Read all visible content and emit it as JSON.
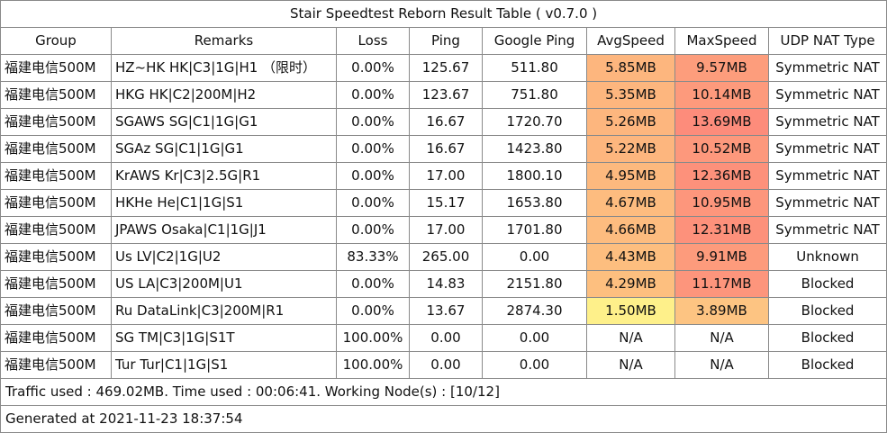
{
  "title": "Stair Speedtest Reborn Result Table ( v0.7.0 )",
  "headers": [
    "Group",
    "Remarks",
    "Loss",
    "Ping",
    "Google Ping",
    "AvgSpeed",
    "MaxSpeed",
    "UDP NAT Type"
  ],
  "rows": [
    {
      "group": "福建电信500M",
      "remarks": "HZ~HK HK|C3|1G|H1 （限时）",
      "loss": "0.00%",
      "ping": "125.67",
      "google_ping": "511.80",
      "avg_speed": "5.85MB",
      "max_speed": "9.57MB",
      "nat": "Symmetric NAT",
      "avg_color": "#fdb67e",
      "max_color": "#fd9d7c"
    },
    {
      "group": "福建电信500M",
      "remarks": "HKG  HK|C2|200M|H2",
      "loss": "0.00%",
      "ping": "123.67",
      "google_ping": "751.80",
      "avg_speed": "5.35MB",
      "max_speed": "10.14MB",
      "nat": "Symmetric NAT",
      "avg_color": "#fdb67e",
      "max_color": "#fd9a7c"
    },
    {
      "group": "福建电信500M",
      "remarks": "SGAWS  SG|C1|1G|G1",
      "loss": "0.00%",
      "ping": "16.67",
      "google_ping": "1720.70",
      "avg_speed": "5.26MB",
      "max_speed": "13.69MB",
      "nat": "Symmetric NAT",
      "avg_color": "#fdb67e",
      "max_color": "#fd8c7b"
    },
    {
      "group": "福建电信500M",
      "remarks": "SGAz  SG|C1|1G|G1",
      "loss": "0.00%",
      "ping": "16.67",
      "google_ping": "1423.80",
      "avg_speed": "5.22MB",
      "max_speed": "10.52MB",
      "nat": "Symmetric NAT",
      "avg_color": "#fdb67e",
      "max_color": "#fd987c"
    },
    {
      "group": "福建电信500M",
      "remarks": "KrAWS Kr|C3|2.5G|R1",
      "loss": "0.00%",
      "ping": "17.00",
      "google_ping": "1800.10",
      "avg_speed": "4.95MB",
      "max_speed": "12.36MB",
      "nat": "Symmetric NAT",
      "avg_color": "#fdb97e",
      "max_color": "#fd917b"
    },
    {
      "group": "福建电信500M",
      "remarks": "HKHe He|C1|1G|S1",
      "loss": "0.00%",
      "ping": "15.17",
      "google_ping": "1653.80",
      "avg_speed": "4.67MB",
      "max_speed": "10.95MB",
      "nat": "Symmetric NAT",
      "avg_color": "#fdbc7f",
      "max_color": "#fd967c"
    },
    {
      "group": "福建电信500M",
      "remarks": "JPAWS  Osaka|C1|1G|J1",
      "loss": "0.00%",
      "ping": "17.00",
      "google_ping": "1701.80",
      "avg_speed": "4.66MB",
      "max_speed": "12.31MB",
      "nat": "Symmetric NAT",
      "avg_color": "#fdbc7f",
      "max_color": "#fd917b"
    },
    {
      "group": "福建电信500M",
      "remarks": "Us LV|C2|1G|U2",
      "loss": "83.33%",
      "ping": "265.00",
      "google_ping": "0.00",
      "avg_speed": "4.43MB",
      "max_speed": "9.91MB",
      "nat": "Unknown",
      "avg_color": "#fdbe7f",
      "max_color": "#fd9b7c"
    },
    {
      "group": "福建电信500M",
      "remarks": "US LA|C3|200M|U1",
      "loss": "0.00%",
      "ping": "14.83",
      "google_ping": "2151.80",
      "avg_speed": "4.29MB",
      "max_speed": "11.17MB",
      "nat": "Blocked",
      "avg_color": "#fdbf7f",
      "max_color": "#fd957c"
    },
    {
      "group": "福建电信500M",
      "remarks": "Ru  DataLink|C3|200M|R1",
      "loss": "0.00%",
      "ping": "13.67",
      "google_ping": "2874.30",
      "avg_speed": "1.50MB",
      "max_speed": "3.89MB",
      "nat": "Blocked",
      "avg_color": "#fef08a",
      "max_color": "#fdc482"
    },
    {
      "group": "福建电信500M",
      "remarks": "SG TM|C3|1G|S1T",
      "loss": "100.00%",
      "ping": "0.00",
      "google_ping": "0.00",
      "avg_speed": "N/A",
      "max_speed": "N/A",
      "nat": "Blocked",
      "avg_color": "#ffffff",
      "max_color": "#ffffff"
    },
    {
      "group": "福建电信500M",
      "remarks": "Tur Tur|C1|1G|S1",
      "loss": "100.00%",
      "ping": "0.00",
      "google_ping": "0.00",
      "avg_speed": "N/A",
      "max_speed": "N/A",
      "nat": "Blocked",
      "avg_color": "#ffffff",
      "max_color": "#ffffff"
    }
  ],
  "footer": {
    "traffic": "Traffic used : 469.02MB. Time used : 00:06:41. Working Node(s) : [10/12]",
    "generated": "Generated at 2021-11-23 18:37:54"
  }
}
